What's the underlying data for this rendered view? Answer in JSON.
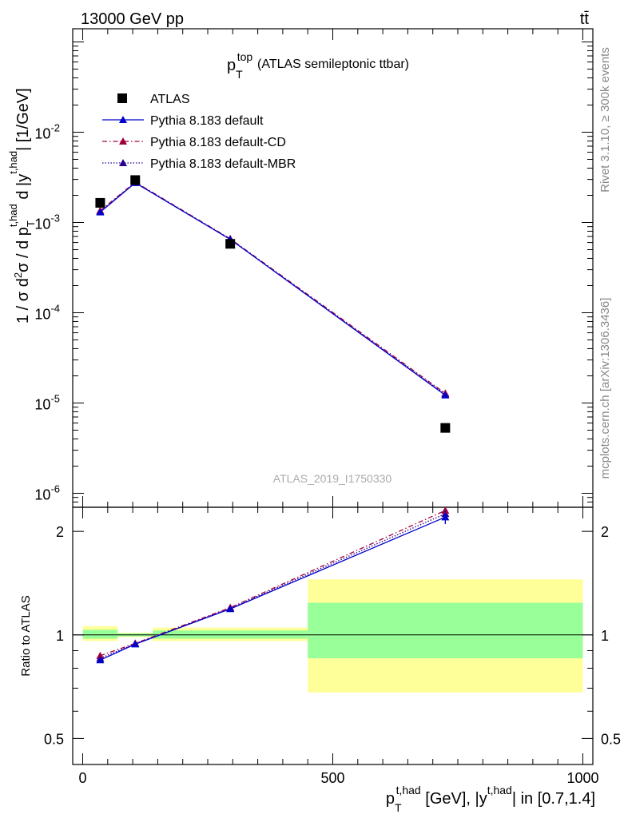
{
  "header": {
    "left": "13000 GeV pp",
    "right": "tt̄"
  },
  "side_labels": {
    "top": "Rivet 3.1.10, ≥ 300k events",
    "bottom": "mcplots.cern.ch [arXiv:1306.3436]"
  },
  "chart_data": [
    {
      "type": "line",
      "panel": "main",
      "title": "(ATLAS semileptonic ttbar)",
      "title_var": "p",
      "title_sub": "T",
      "title_sup": "top",
      "ylabel": "1 / σ d²σ / d pT,had d |yt,had| [1/GeV]",
      "ylabel_parts": {
        "p1": "1 / σ d",
        "s1": "2",
        "p2": "σ / d p",
        "sub1": "T",
        "sup1": "t,had",
        "p3": " d |y",
        "sup2": "t,had",
        "p4": "| [1/GeV]"
      },
      "yscale": "log",
      "ylim": [
        7e-07,
        0.14
      ],
      "yticks": [
        {
          "v": 1e-06,
          "b": "10",
          "e": "-6"
        },
        {
          "v": 1e-05,
          "b": "10",
          "e": "-5"
        },
        {
          "v": 0.0001,
          "b": "10",
          "e": "-4"
        },
        {
          "v": 0.001,
          "b": "10",
          "e": "-3"
        },
        {
          "v": 0.01,
          "b": "10",
          "e": "-2"
        }
      ],
      "xlim": [
        -20,
        1020
      ],
      "watermark": "ATLAS_2019_I1750330",
      "series": [
        {
          "name": "ATLAS",
          "style": "square",
          "color": "#000000",
          "x": [
            35,
            105,
            295,
            725
          ],
          "y": [
            0.00165,
            0.00295,
            0.00058,
            5.3e-06
          ]
        },
        {
          "name": "Pythia 8.183 default",
          "style": "solid",
          "color": "#0000cc",
          "x": [
            35,
            105,
            295,
            725
          ],
          "y": [
            0.0013,
            0.00275,
            0.00065,
            1.22e-05
          ]
        },
        {
          "name": "Pythia 8.183 default-CD",
          "style": "dashdot",
          "color": "#a0003c",
          "x": [
            35,
            105,
            295,
            725
          ],
          "y": [
            0.00135,
            0.0028,
            0.00066,
            1.28e-05
          ]
        },
        {
          "name": "Pythia 8.183 default-MBR",
          "style": "dotted",
          "color": "#2a008a",
          "x": [
            35,
            105,
            295,
            725
          ],
          "y": [
            0.00132,
            0.00278,
            0.00065,
            1.25e-05
          ]
        }
      ]
    },
    {
      "type": "line",
      "panel": "ratio",
      "ylabel": "Ratio to ATLAS",
      "yscale": "log",
      "ylim": [
        0.42,
        2.35
      ],
      "yticks": [
        {
          "v": 0.5,
          "l": "0.5"
        },
        {
          "v": 1,
          "l": "1"
        },
        {
          "v": 2,
          "l": "2"
        }
      ],
      "xlim": [
        -20,
        1020
      ],
      "xticks": [
        {
          "v": 0,
          "l": "0"
        },
        {
          "v": 500,
          "l": "500"
        },
        {
          "v": 1000,
          "l": "1000"
        }
      ],
      "xlabel_parts": {
        "p": "p",
        "sub": "T",
        "sup1": "t,had",
        "mid": " [GeV], |y",
        "sup2": "t,had",
        "end": "| in [0.7,1.4]"
      },
      "bands": [
        {
          "x0": 0,
          "x1": 70,
          "y_lo": 0.96,
          "y_hi": 1.06,
          "g_lo": 0.975,
          "g_hi": 1.035
        },
        {
          "x0": 70,
          "x1": 140,
          "y_lo": 0.985,
          "y_hi": 1.015,
          "g_lo": 0.99,
          "g_hi": 1.01
        },
        {
          "x0": 140,
          "x1": 450,
          "y_lo": 0.96,
          "y_hi": 1.05,
          "g_lo": 0.975,
          "g_hi": 1.03
        },
        {
          "x0": 450,
          "x1": 1000,
          "y_lo": 0.68,
          "y_hi": 1.45,
          "g_lo": 0.855,
          "g_hi": 1.24
        }
      ],
      "series": [
        {
          "name": "Pythia 8.183 default",
          "style": "solid",
          "color": "#0000cc",
          "x": [
            35,
            105,
            295,
            725
          ],
          "y": [
            0.845,
            0.94,
            1.19,
            2.2
          ],
          "err": [
            0,
            0,
            0,
            0.1
          ]
        },
        {
          "name": "Pythia 8.183 default-CD",
          "style": "dashdot",
          "color": "#a0003c",
          "x": [
            35,
            105,
            295,
            725
          ],
          "y": [
            0.87,
            0.945,
            1.2,
            2.3
          ]
        },
        {
          "name": "Pythia 8.183 default-MBR",
          "style": "dotted",
          "color": "#2a008a",
          "x": [
            35,
            105,
            295,
            725
          ],
          "y": [
            0.855,
            0.942,
            1.195,
            2.25
          ]
        }
      ]
    }
  ],
  "colors": {
    "band_yellow": "#ffff99",
    "band_green": "#99ff99"
  }
}
